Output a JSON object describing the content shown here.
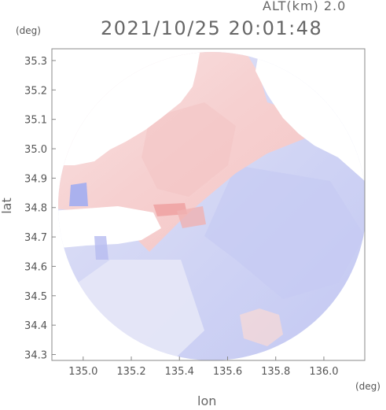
{
  "header": {
    "altitude_label": "ALT(km) 2.0",
    "datetime": "2021/10/25 20:01:48"
  },
  "axes": {
    "y_unit": "(deg)",
    "x_unit": "(deg)",
    "y_label": "lat",
    "x_label": "lon",
    "x_ticks": [
      {
        "value": 135.0,
        "label": "135.0"
      },
      {
        "value": 135.2,
        "label": "135.2"
      },
      {
        "value": 135.4,
        "label": "135.4"
      },
      {
        "value": 135.6,
        "label": "135.6"
      },
      {
        "value": 135.8,
        "label": "135.8"
      },
      {
        "value": 136.0,
        "label": "136.0"
      }
    ],
    "y_ticks": [
      {
        "value": 34.3,
        "label": "34.3"
      },
      {
        "value": 34.4,
        "label": "34.4"
      },
      {
        "value": 34.5,
        "label": "34.5"
      },
      {
        "value": 34.6,
        "label": "34.6"
      },
      {
        "value": 34.7,
        "label": "34.7"
      },
      {
        "value": 34.8,
        "label": "34.8"
      },
      {
        "value": 34.9,
        "label": "34.9"
      },
      {
        "value": 35.0,
        "label": "35.0"
      },
      {
        "value": 35.1,
        "label": "35.1"
      },
      {
        "value": 35.2,
        "label": "35.2"
      },
      {
        "value": 35.3,
        "label": "35.3"
      }
    ],
    "xlim": [
      134.87,
      136.17
    ],
    "ylim": [
      34.28,
      35.34
    ]
  },
  "colors": {
    "approaching": "#c9cdf3",
    "approaching_strong": "#9da5ee",
    "receding": "#f7d3d3",
    "receding_strong": "#ee9a9a",
    "frame": "#888888"
  }
}
